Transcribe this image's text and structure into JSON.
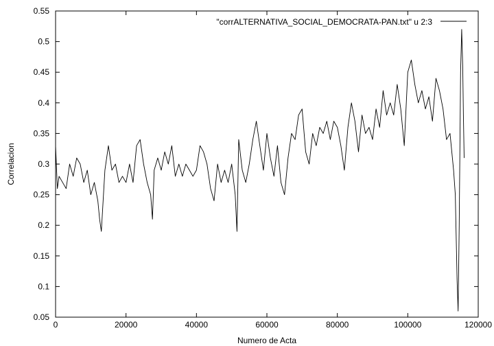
{
  "chart_data": {
    "type": "line",
    "title": "",
    "xlabel": "Numero de Acta",
    "ylabel": "Correlacion",
    "xlim": [
      0,
      120000
    ],
    "ylim": [
      0.05,
      0.55
    ],
    "x_ticks": [
      0,
      20000,
      40000,
      60000,
      80000,
      100000,
      120000
    ],
    "x_tick_labels": [
      "0",
      "20000",
      "40000",
      "60000",
      "80000",
      "100000",
      "120000"
    ],
    "y_ticks": [
      0.05,
      0.1,
      0.15,
      0.2,
      0.25,
      0.3,
      0.35,
      0.4,
      0.45,
      0.5,
      0.55
    ],
    "y_tick_labels": [
      "0.05",
      "0.1",
      "0.15",
      "0.2",
      "0.25",
      "0.3",
      "0.35",
      "0.4",
      "0.45",
      "0.5",
      "0.55"
    ],
    "grid": false,
    "legend": {
      "position": "top-right"
    },
    "series": [
      {
        "name": "\"corrALTERNATIVA_SOCIAL_DEMOCRATA-PAN.txt\" u 2:3",
        "color": "#000000",
        "x": [
          0,
          500,
          1000,
          2000,
          3000,
          4000,
          5000,
          6000,
          7000,
          8000,
          9000,
          10000,
          11000,
          12000,
          12500,
          13000,
          13500,
          14000,
          15000,
          16000,
          17000,
          18000,
          19000,
          20000,
          21000,
          22000,
          23000,
          24000,
          25000,
          26000,
          27000,
          27500,
          28000,
          29000,
          30000,
          31000,
          32000,
          33000,
          34000,
          35000,
          36000,
          37000,
          38000,
          39000,
          40000,
          41000,
          42000,
          43000,
          44000,
          45000,
          46000,
          47000,
          48000,
          49000,
          50000,
          51000,
          51500,
          52000,
          53000,
          54000,
          55000,
          56000,
          57000,
          58000,
          59000,
          60000,
          61000,
          62000,
          63000,
          64000,
          65000,
          66000,
          67000,
          68000,
          69000,
          70000,
          71000,
          72000,
          73000,
          74000,
          75000,
          76000,
          77000,
          78000,
          79000,
          80000,
          81000,
          82000,
          83000,
          84000,
          85000,
          86000,
          87000,
          88000,
          89000,
          90000,
          91000,
          92000,
          93000,
          94000,
          95000,
          96000,
          97000,
          98000,
          99000,
          100000,
          101000,
          102000,
          103000,
          104000,
          105000,
          106000,
          107000,
          108000,
          109000,
          110000,
          111000,
          112000,
          113000,
          113500,
          114000,
          114300,
          114600,
          115000,
          115300,
          115600,
          115800,
          116000
        ],
        "y": [
          0.33,
          0.26,
          0.28,
          0.27,
          0.26,
          0.3,
          0.28,
          0.31,
          0.3,
          0.27,
          0.29,
          0.25,
          0.27,
          0.24,
          0.21,
          0.19,
          0.24,
          0.29,
          0.33,
          0.29,
          0.3,
          0.27,
          0.28,
          0.27,
          0.3,
          0.27,
          0.33,
          0.34,
          0.3,
          0.27,
          0.25,
          0.21,
          0.29,
          0.31,
          0.29,
          0.32,
          0.3,
          0.33,
          0.28,
          0.3,
          0.28,
          0.3,
          0.29,
          0.28,
          0.29,
          0.33,
          0.32,
          0.3,
          0.26,
          0.24,
          0.3,
          0.27,
          0.29,
          0.27,
          0.3,
          0.25,
          0.19,
          0.34,
          0.29,
          0.27,
          0.3,
          0.34,
          0.37,
          0.33,
          0.29,
          0.35,
          0.31,
          0.28,
          0.33,
          0.27,
          0.25,
          0.31,
          0.35,
          0.34,
          0.38,
          0.39,
          0.32,
          0.3,
          0.35,
          0.33,
          0.36,
          0.35,
          0.37,
          0.34,
          0.37,
          0.36,
          0.33,
          0.29,
          0.36,
          0.4,
          0.37,
          0.32,
          0.38,
          0.35,
          0.36,
          0.34,
          0.39,
          0.36,
          0.42,
          0.38,
          0.4,
          0.38,
          0.43,
          0.39,
          0.33,
          0.45,
          0.47,
          0.43,
          0.4,
          0.42,
          0.39,
          0.41,
          0.37,
          0.44,
          0.42,
          0.39,
          0.34,
          0.35,
          0.29,
          0.25,
          0.11,
          0.06,
          0.2,
          0.45,
          0.52,
          0.46,
          0.38,
          0.31
        ]
      }
    ]
  }
}
